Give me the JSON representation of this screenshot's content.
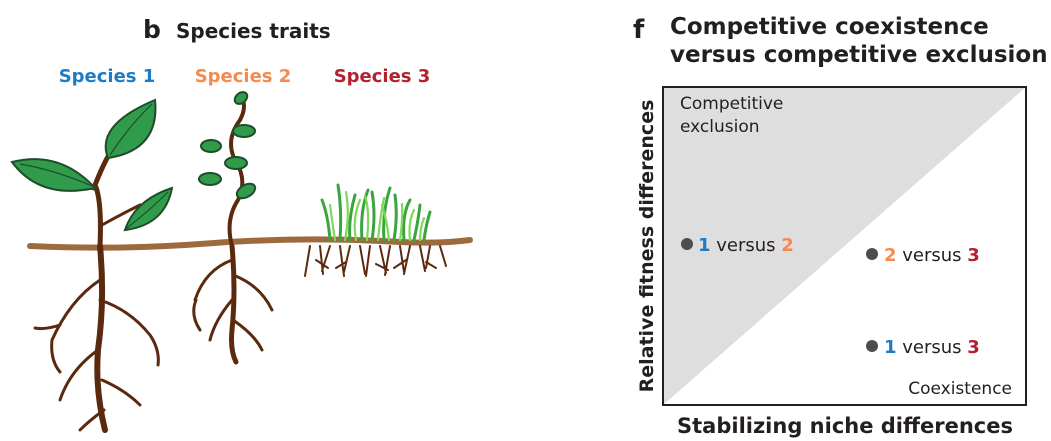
{
  "panel_b": {
    "letter": "b",
    "title": "Species traits",
    "species": [
      "Species 1",
      "Species 2",
      "Species 3"
    ]
  },
  "panel_f": {
    "letter": "f",
    "title_lines": [
      "Competitive coexistence",
      "versus competitive exclusion"
    ],
    "y_axis_label": "Relative fitness differences",
    "x_axis_label": "Stabilizing niche differences",
    "region_labels": {
      "exclusion": [
        "Competitive",
        "exclusion"
      ],
      "coexistence": "Coexistence"
    },
    "comparisons": [
      [
        "1",
        "versus",
        "2"
      ],
      [
        "2",
        "versus",
        "3"
      ],
      [
        "1",
        "versus",
        "3"
      ]
    ]
  }
}
